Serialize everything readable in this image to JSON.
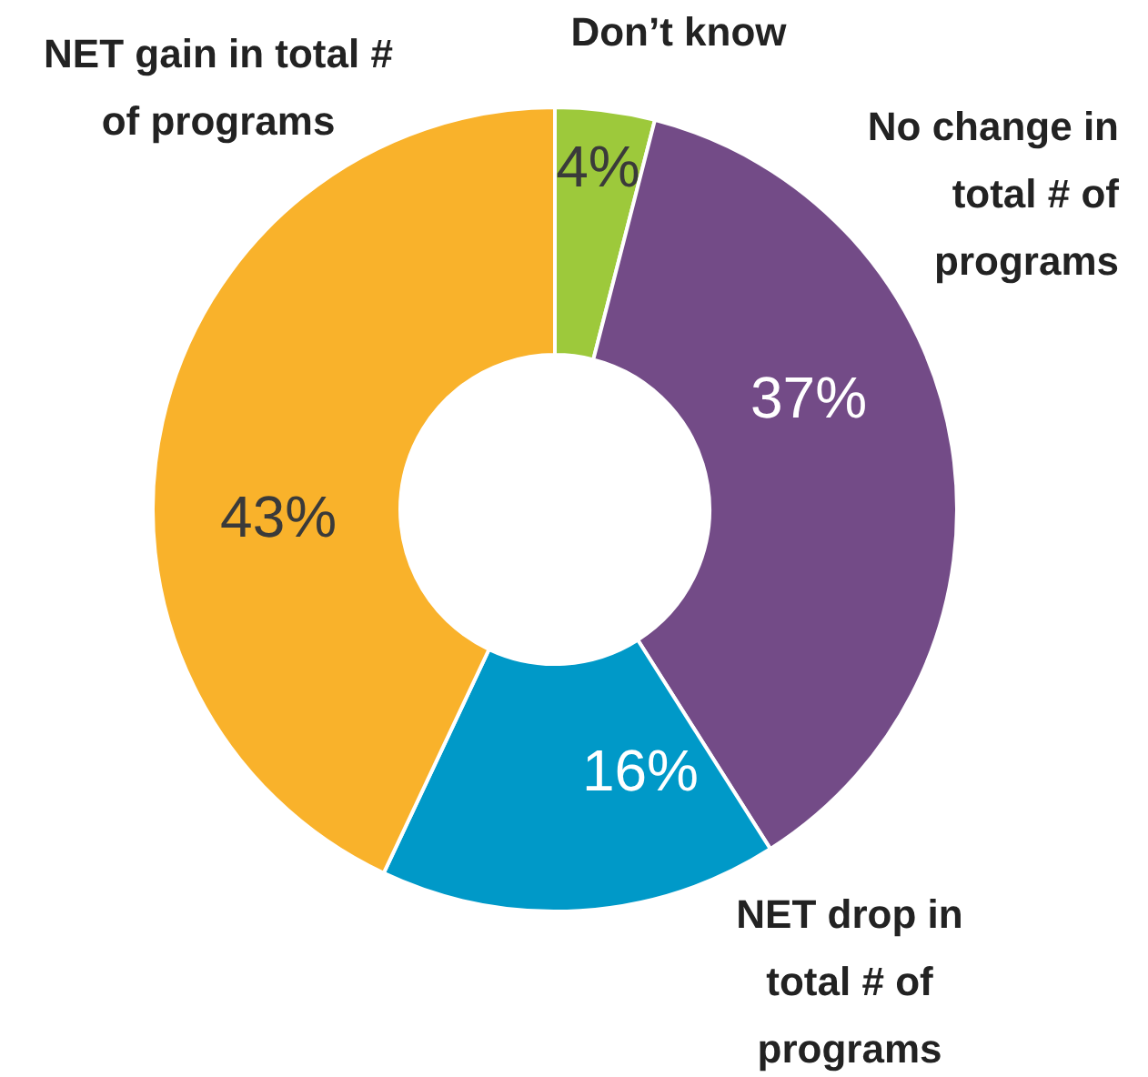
{
  "chart_data": {
    "type": "donut",
    "categories": [
      "Don’t know",
      "No change in total # of programs",
      "NET drop in total # of programs",
      "NET gain in total # of programs"
    ],
    "values": [
      4,
      37,
      16,
      43
    ],
    "value_labels": [
      "4%",
      "37%",
      "16%",
      "43%"
    ],
    "colors": [
      "#9dc93b",
      "#734b87",
      "#0099c8",
      "#f9b22b"
    ]
  }
}
